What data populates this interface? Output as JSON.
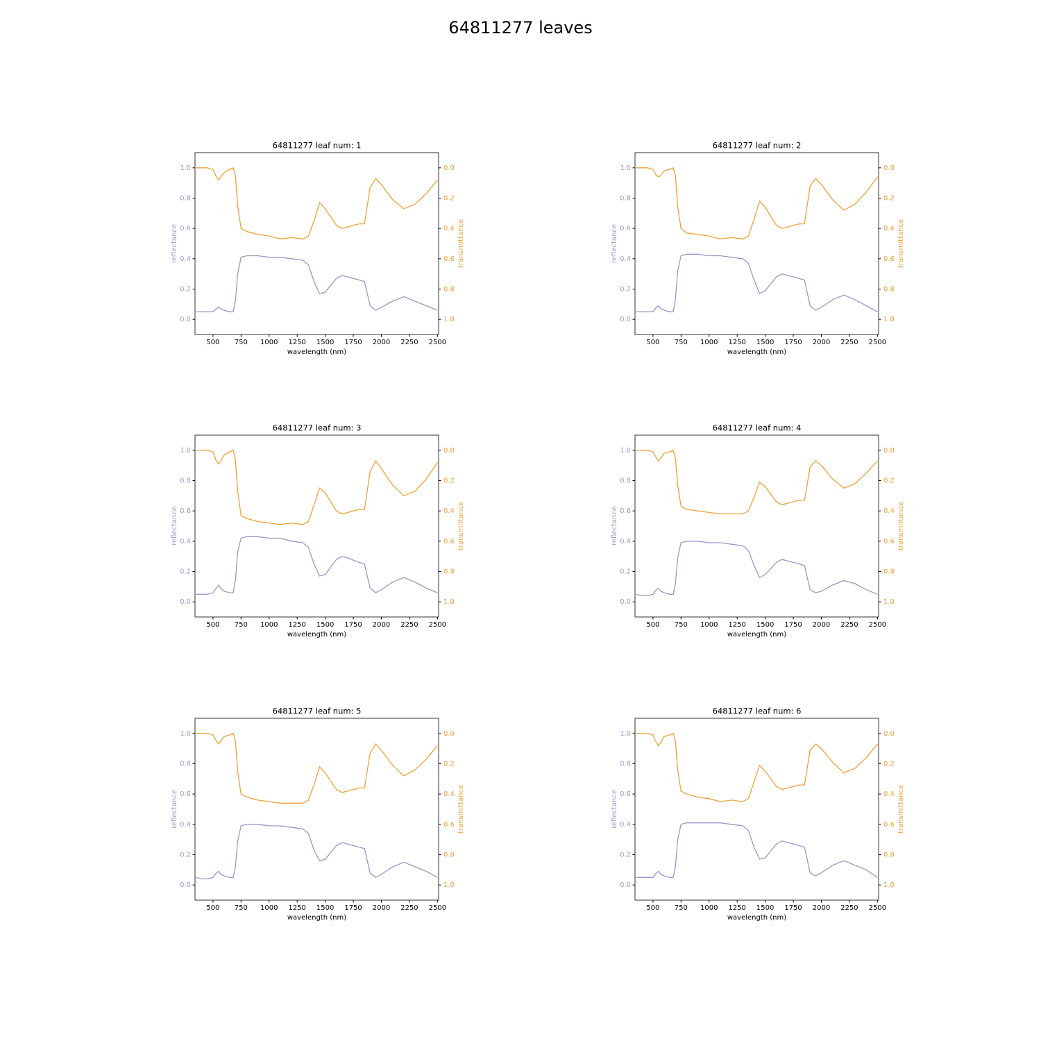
{
  "title": "64811277 leaves",
  "chart_data": [
    {
      "type": "line",
      "title": "64811277 leaf num: 1",
      "x_label": "wavelength (nm)",
      "y_label": "reflectance",
      "y2_label": "transmittance",
      "x": [
        350,
        400,
        450,
        500,
        530,
        550,
        570,
        600,
        650,
        680,
        700,
        720,
        750,
        800,
        900,
        1000,
        1100,
        1200,
        1300,
        1350,
        1400,
        1450,
        1500,
        1600,
        1650,
        1700,
        1800,
        1850,
        1900,
        1950,
        2000,
        2100,
        2200,
        2300,
        2400,
        2500
      ],
      "series": [
        {
          "color": "#9b95c9",
          "axis": "y",
          "values": [
            0.05,
            0.05,
            0.05,
            0.05,
            0.07,
            0.08,
            0.07,
            0.06,
            0.05,
            0.05,
            0.12,
            0.3,
            0.41,
            0.42,
            0.42,
            0.41,
            0.41,
            0.4,
            0.39,
            0.36,
            0.25,
            0.17,
            0.18,
            0.27,
            0.29,
            0.28,
            0.26,
            0.25,
            0.09,
            0.06,
            0.08,
            0.12,
            0.15,
            0.12,
            0.09,
            0.06
          ]
        },
        {
          "color": "#f0a035",
          "axis": "y2",
          "values": [
            0.0,
            0.0,
            0.0,
            0.01,
            0.06,
            0.08,
            0.06,
            0.03,
            0.01,
            0.0,
            0.05,
            0.25,
            0.4,
            0.42,
            0.44,
            0.45,
            0.47,
            0.46,
            0.47,
            0.45,
            0.35,
            0.23,
            0.27,
            0.38,
            0.4,
            0.39,
            0.37,
            0.37,
            0.13,
            0.07,
            0.11,
            0.21,
            0.27,
            0.24,
            0.17,
            0.08
          ]
        }
      ],
      "xlim": [
        340,
        2510
      ],
      "xticks": [
        500,
        750,
        1000,
        1250,
        1500,
        1750,
        2000,
        2250,
        2500
      ],
      "ylim": [
        -0.1,
        1.1
      ],
      "yticks": [
        {
          "value": 0,
          "label": "0.0"
        },
        0.2,
        0.4,
        0.6,
        0.8,
        {
          "value": 1,
          "label": "1.0"
        }
      ],
      "y2lim": [
        1.1,
        -0.1
      ],
      "y2ticks": [
        {
          "value": 0,
          "label": "0.0"
        },
        0.2,
        0.4,
        0.6,
        0.8,
        {
          "value": 1,
          "label": "1.0"
        }
      ]
    },
    {
      "type": "line",
      "title": "64811277 leaf num: 2",
      "x_label": "wavelength (nm)",
      "y_label": "reflectance",
      "y2_label": "transmittance",
      "x": [
        350,
        400,
        450,
        500,
        530,
        550,
        570,
        600,
        650,
        680,
        700,
        720,
        750,
        800,
        900,
        1000,
        1100,
        1200,
        1300,
        1350,
        1400,
        1450,
        1500,
        1600,
        1650,
        1700,
        1800,
        1850,
        1900,
        1950,
        2000,
        2100,
        2200,
        2300,
        2400,
        2500
      ],
      "series": [
        {
          "color": "#9b95c9",
          "axis": "y",
          "values": [
            0.05,
            0.05,
            0.05,
            0.05,
            0.08,
            0.09,
            0.07,
            0.06,
            0.05,
            0.05,
            0.13,
            0.32,
            0.42,
            0.43,
            0.43,
            0.42,
            0.42,
            0.41,
            0.4,
            0.37,
            0.26,
            0.17,
            0.19,
            0.28,
            0.3,
            0.29,
            0.27,
            0.26,
            0.09,
            0.06,
            0.08,
            0.13,
            0.16,
            0.13,
            0.09,
            0.05
          ]
        },
        {
          "color": "#f0a035",
          "axis": "y2",
          "values": [
            0.0,
            0.0,
            0.0,
            0.01,
            0.05,
            0.06,
            0.05,
            0.02,
            0.01,
            0.0,
            0.05,
            0.26,
            0.4,
            0.43,
            0.44,
            0.45,
            0.47,
            0.46,
            0.47,
            0.45,
            0.34,
            0.22,
            0.26,
            0.38,
            0.4,
            0.39,
            0.37,
            0.37,
            0.12,
            0.07,
            0.11,
            0.21,
            0.28,
            0.24,
            0.16,
            0.06
          ]
        }
      ],
      "xlim": [
        340,
        2510
      ],
      "xticks": [
        500,
        750,
        1000,
        1250,
        1500,
        1750,
        2000,
        2250,
        2500
      ],
      "ylim": [
        -0.1,
        1.1
      ],
      "yticks": [
        {
          "value": 0,
          "label": "0.0"
        },
        0.2,
        0.4,
        0.6,
        0.8,
        {
          "value": 1,
          "label": "1.0"
        }
      ],
      "y2lim": [
        1.1,
        -0.1
      ],
      "y2ticks": [
        {
          "value": 0,
          "label": "0.0"
        },
        0.2,
        0.4,
        0.6,
        0.8,
        {
          "value": 1,
          "label": "1.0"
        }
      ]
    },
    {
      "type": "line",
      "title": "64811277 leaf num: 3",
      "x_label": "wavelength (nm)",
      "y_label": "reflectance",
      "y2_label": "transmittance",
      "x": [
        350,
        400,
        450,
        500,
        530,
        550,
        570,
        600,
        650,
        680,
        700,
        720,
        750,
        800,
        900,
        1000,
        1100,
        1200,
        1300,
        1350,
        1400,
        1450,
        1500,
        1600,
        1650,
        1700,
        1800,
        1850,
        1900,
        1950,
        2000,
        2100,
        2200,
        2300,
        2400,
        2500
      ],
      "series": [
        {
          "color": "#9b95c9",
          "axis": "y",
          "values": [
            0.05,
            0.05,
            0.05,
            0.06,
            0.09,
            0.11,
            0.09,
            0.07,
            0.06,
            0.06,
            0.14,
            0.33,
            0.42,
            0.43,
            0.43,
            0.42,
            0.42,
            0.4,
            0.39,
            0.36,
            0.25,
            0.17,
            0.18,
            0.28,
            0.3,
            0.29,
            0.26,
            0.25,
            0.09,
            0.06,
            0.08,
            0.13,
            0.16,
            0.13,
            0.09,
            0.06
          ]
        },
        {
          "color": "#f0a035",
          "axis": "y2",
          "values": [
            0.0,
            0.0,
            0.0,
            0.01,
            0.07,
            0.09,
            0.07,
            0.03,
            0.01,
            0.0,
            0.06,
            0.27,
            0.43,
            0.45,
            0.47,
            0.48,
            0.49,
            0.48,
            0.49,
            0.47,
            0.36,
            0.25,
            0.28,
            0.4,
            0.42,
            0.41,
            0.39,
            0.39,
            0.14,
            0.07,
            0.12,
            0.23,
            0.3,
            0.27,
            0.19,
            0.08
          ]
        }
      ],
      "xlim": [
        340,
        2510
      ],
      "xticks": [
        500,
        750,
        1000,
        1250,
        1500,
        1750,
        2000,
        2250,
        2500
      ],
      "ylim": [
        -0.1,
        1.1
      ],
      "yticks": [
        {
          "value": 0,
          "label": "0.0"
        },
        0.2,
        0.4,
        0.6,
        0.8,
        {
          "value": 1,
          "label": "1.0"
        }
      ],
      "y2lim": [
        1.1,
        -0.1
      ],
      "y2ticks": [
        {
          "value": 0,
          "label": "0.0"
        },
        0.2,
        0.4,
        0.6,
        0.8,
        {
          "value": 1,
          "label": "1.0"
        }
      ]
    },
    {
      "type": "line",
      "title": "64811277 leaf num: 4",
      "x_label": "wavelength (nm)",
      "y_label": "reflectance",
      "y2_label": "transmittance",
      "x": [
        350,
        400,
        450,
        500,
        530,
        550,
        570,
        600,
        650,
        680,
        700,
        720,
        750,
        800,
        900,
        1000,
        1100,
        1200,
        1300,
        1350,
        1400,
        1450,
        1500,
        1600,
        1650,
        1700,
        1800,
        1850,
        1900,
        1950,
        2000,
        2100,
        2200,
        2300,
        2400,
        2500
      ],
      "series": [
        {
          "color": "#9b95c9",
          "axis": "y",
          "values": [
            0.05,
            0.04,
            0.04,
            0.05,
            0.08,
            0.09,
            0.07,
            0.06,
            0.05,
            0.05,
            0.12,
            0.29,
            0.39,
            0.4,
            0.4,
            0.39,
            0.39,
            0.38,
            0.37,
            0.34,
            0.24,
            0.16,
            0.18,
            0.26,
            0.28,
            0.27,
            0.25,
            0.24,
            0.08,
            0.06,
            0.07,
            0.11,
            0.14,
            0.12,
            0.08,
            0.05
          ]
        },
        {
          "color": "#f0a035",
          "axis": "y2",
          "values": [
            0.0,
            0.0,
            0.0,
            0.01,
            0.05,
            0.07,
            0.05,
            0.02,
            0.01,
            0.0,
            0.05,
            0.23,
            0.37,
            0.39,
            0.4,
            0.41,
            0.42,
            0.42,
            0.42,
            0.4,
            0.31,
            0.21,
            0.24,
            0.34,
            0.36,
            0.35,
            0.33,
            0.33,
            0.11,
            0.07,
            0.1,
            0.19,
            0.25,
            0.22,
            0.15,
            0.07
          ]
        }
      ],
      "xlim": [
        340,
        2510
      ],
      "xticks": [
        500,
        750,
        1000,
        1250,
        1500,
        1750,
        2000,
        2250,
        2500
      ],
      "ylim": [
        -0.1,
        1.1
      ],
      "yticks": [
        {
          "value": 0,
          "label": "0.0"
        },
        0.2,
        0.4,
        0.6,
        0.8,
        {
          "value": 1,
          "label": "1.0"
        }
      ],
      "y2lim": [
        1.1,
        -0.1
      ],
      "y2ticks": [
        {
          "value": 0,
          "label": "0.0"
        },
        0.2,
        0.4,
        0.6,
        0.8,
        {
          "value": 1,
          "label": "1.0"
        }
      ]
    },
    {
      "type": "line",
      "title": "64811277 leaf num: 5",
      "x_label": "wavelength (nm)",
      "y_label": "reflectance",
      "y2_label": "transmittance",
      "x": [
        350,
        400,
        450,
        500,
        530,
        550,
        570,
        600,
        650,
        680,
        700,
        720,
        750,
        800,
        900,
        1000,
        1100,
        1200,
        1300,
        1350,
        1400,
        1450,
        1500,
        1600,
        1650,
        1700,
        1800,
        1850,
        1900,
        1950,
        2000,
        2100,
        2200,
        2300,
        2400,
        2500
      ],
      "series": [
        {
          "color": "#9b95c9",
          "axis": "y",
          "values": [
            0.05,
            0.04,
            0.04,
            0.05,
            0.08,
            0.09,
            0.07,
            0.06,
            0.05,
            0.05,
            0.12,
            0.29,
            0.39,
            0.4,
            0.4,
            0.39,
            0.39,
            0.38,
            0.37,
            0.34,
            0.23,
            0.16,
            0.17,
            0.26,
            0.28,
            0.27,
            0.25,
            0.24,
            0.08,
            0.05,
            0.07,
            0.12,
            0.15,
            0.12,
            0.09,
            0.05
          ]
        },
        {
          "color": "#f0a035",
          "axis": "y2",
          "values": [
            0.0,
            0.0,
            0.0,
            0.01,
            0.05,
            0.07,
            0.05,
            0.02,
            0.01,
            0.0,
            0.05,
            0.25,
            0.4,
            0.42,
            0.44,
            0.45,
            0.46,
            0.46,
            0.46,
            0.44,
            0.34,
            0.22,
            0.26,
            0.37,
            0.39,
            0.38,
            0.36,
            0.36,
            0.13,
            0.07,
            0.11,
            0.21,
            0.28,
            0.24,
            0.17,
            0.08
          ]
        }
      ],
      "xlim": [
        340,
        2510
      ],
      "xticks": [
        500,
        750,
        1000,
        1250,
        1500,
        1750,
        2000,
        2250,
        2500
      ],
      "ylim": [
        -0.1,
        1.1
      ],
      "yticks": [
        {
          "value": 0,
          "label": "0.0"
        },
        0.2,
        0.4,
        0.6,
        0.8,
        {
          "value": 1,
          "label": "1.0"
        }
      ],
      "y2lim": [
        1.1,
        -0.1
      ],
      "y2ticks": [
        {
          "value": 0,
          "label": "0.0"
        },
        0.2,
        0.4,
        0.6,
        0.8,
        {
          "value": 1,
          "label": "1.0"
        }
      ]
    },
    {
      "type": "line",
      "title": "64811277 leaf num: 6",
      "x_label": "wavelength (nm)",
      "y_label": "reflectance",
      "y2_label": "transmittance",
      "x": [
        350,
        400,
        450,
        500,
        530,
        550,
        570,
        600,
        650,
        680,
        700,
        720,
        750,
        800,
        900,
        1000,
        1100,
        1200,
        1300,
        1350,
        1400,
        1450,
        1500,
        1600,
        1650,
        1700,
        1800,
        1850,
        1900,
        1950,
        2000,
        2100,
        2200,
        2300,
        2400,
        2500
      ],
      "series": [
        {
          "color": "#9b95c9",
          "axis": "y",
          "values": [
            0.05,
            0.05,
            0.05,
            0.05,
            0.08,
            0.09,
            0.07,
            0.06,
            0.05,
            0.05,
            0.12,
            0.3,
            0.4,
            0.41,
            0.41,
            0.41,
            0.41,
            0.4,
            0.39,
            0.36,
            0.25,
            0.17,
            0.18,
            0.27,
            0.29,
            0.28,
            0.26,
            0.25,
            0.08,
            0.06,
            0.08,
            0.13,
            0.16,
            0.13,
            0.1,
            0.05
          ]
        },
        {
          "color": "#f0a035",
          "axis": "y2",
          "values": [
            0.0,
            0.0,
            0.0,
            0.01,
            0.06,
            0.08,
            0.06,
            0.02,
            0.01,
            0.0,
            0.05,
            0.24,
            0.38,
            0.4,
            0.42,
            0.43,
            0.45,
            0.44,
            0.45,
            0.43,
            0.32,
            0.21,
            0.25,
            0.35,
            0.37,
            0.36,
            0.34,
            0.34,
            0.11,
            0.07,
            0.1,
            0.19,
            0.26,
            0.23,
            0.16,
            0.07
          ]
        }
      ],
      "xlim": [
        340,
        2510
      ],
      "xticks": [
        500,
        750,
        1000,
        1250,
        1500,
        1750,
        2000,
        2250,
        2500
      ],
      "ylim": [
        -0.1,
        1.1
      ],
      "yticks": [
        {
          "value": 0,
          "label": "0.0"
        },
        0.2,
        0.4,
        0.6,
        0.8,
        {
          "value": 1,
          "label": "1.0"
        }
      ],
      "y2lim": [
        1.1,
        -0.1
      ],
      "y2ticks": [
        {
          "value": 0,
          "label": "0.0"
        },
        0.2,
        0.4,
        0.6,
        0.8,
        {
          "value": 1,
          "label": "1.0"
        }
      ]
    }
  ]
}
